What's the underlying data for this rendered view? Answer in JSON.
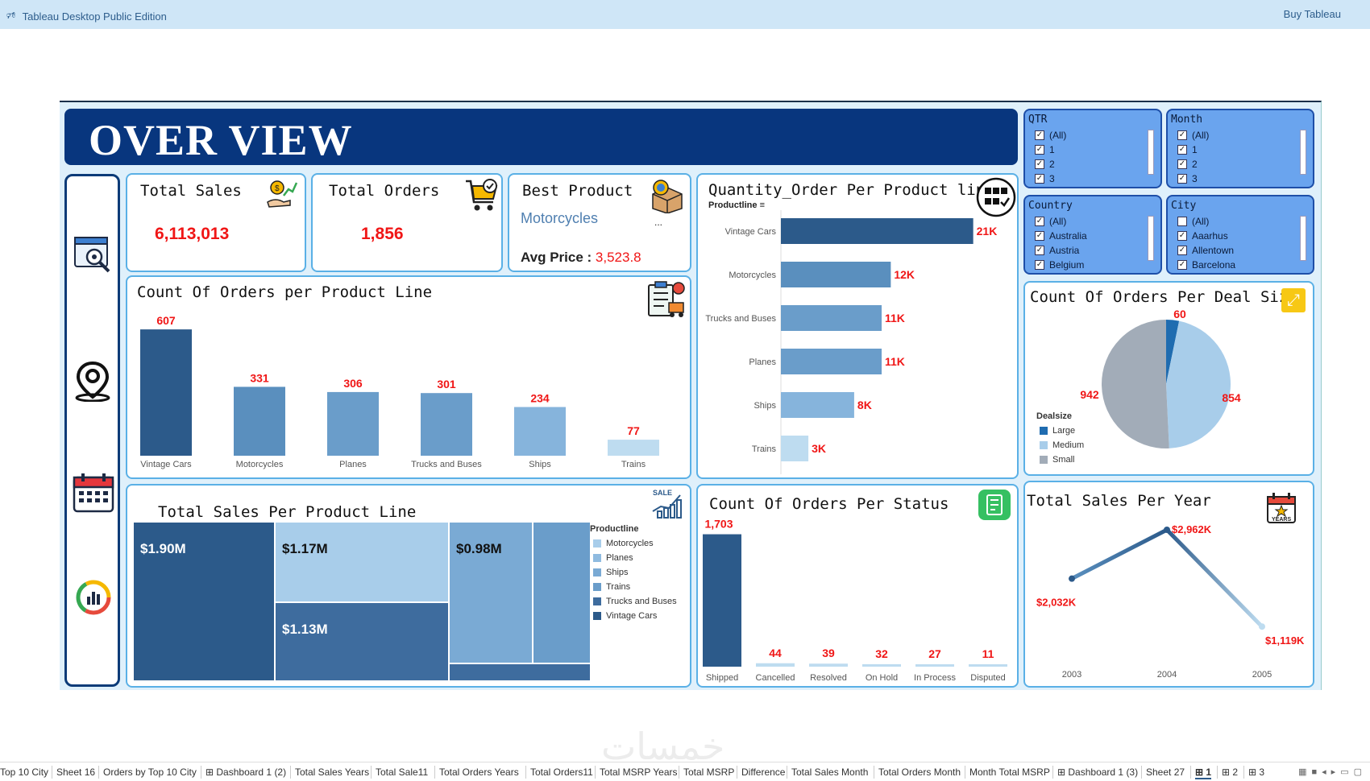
{
  "app": {
    "title": "Tableau Desktop Public Edition",
    "buy": "Buy Tableau"
  },
  "banner": "OVER VIEW",
  "kpis": {
    "total_sales_label": "Total Sales",
    "total_sales_value": "6,113,013",
    "total_orders_label": "Total Orders",
    "total_orders_value": "1,856",
    "best_product_label": "Best Product",
    "best_product_value": "Motorcycles",
    "best_product_more": "...",
    "avg_price_label": "Avg Price :",
    "avg_price_value": "3,523.8"
  },
  "filters": {
    "qtr": {
      "title": "QTR",
      "options": [
        {
          "label": "(All)",
          "checked": true
        },
        {
          "label": "1",
          "checked": true
        },
        {
          "label": "2",
          "checked": true
        },
        {
          "label": "3",
          "checked": true
        }
      ]
    },
    "month": {
      "title": "Month",
      "options": [
        {
          "label": "(All)",
          "checked": true
        },
        {
          "label": "1",
          "checked": true
        },
        {
          "label": "2",
          "checked": true
        },
        {
          "label": "3",
          "checked": true
        }
      ]
    },
    "country": {
      "title": "Country",
      "options": [
        {
          "label": "(All)",
          "checked": true
        },
        {
          "label": "Australia",
          "checked": true
        },
        {
          "label": "Austria",
          "checked": true
        },
        {
          "label": "Belgium",
          "checked": true
        }
      ]
    },
    "city": {
      "title": "City",
      "options": [
        {
          "label": "(All)",
          "checked": false
        },
        {
          "label": "Aaarhus",
          "checked": true
        },
        {
          "label": "Allentown",
          "checked": true
        },
        {
          "label": "Barcelona",
          "checked": true
        }
      ]
    }
  },
  "chart_data": [
    {
      "type": "bar",
      "title": "Count Of Orders per Product Line",
      "categories": [
        "Vintage Cars",
        "Motorcycles",
        "Planes",
        "Trucks and Buses",
        "Ships",
        "Trains"
      ],
      "values": [
        607,
        331,
        306,
        301,
        234,
        77
      ],
      "labels": [
        "607",
        "331",
        "306",
        "301",
        "234",
        "77"
      ],
      "colors": [
        "#2c5a8a",
        "#5a8fbe",
        "#6a9dca",
        "#6a9dca",
        "#86b4dc",
        "#bedcf0"
      ],
      "ylim": [
        0,
        650
      ]
    },
    {
      "type": "bar",
      "orientation": "horizontal",
      "title": "Quantity_Order Per Product line",
      "subtitle": "Productline",
      "categories": [
        "Vintage Cars",
        "Motorcycles",
        "Trucks and Buses",
        "Planes",
        "Ships",
        "Trains"
      ],
      "values": [
        21,
        12,
        11,
        11,
        8,
        3
      ],
      "labels": [
        "21K",
        "12K",
        "11K",
        "11K",
        "8K",
        "3K"
      ],
      "colors": [
        "#2c5a8a",
        "#5a8fbe",
        "#6a9dca",
        "#6a9dca",
        "#86b4dc",
        "#bedcf0"
      ],
      "xlim": [
        0,
        22
      ]
    },
    {
      "type": "pie",
      "title": "Count Of Orders Per Deal Size",
      "legend_title": "Dealsize",
      "slices": [
        {
          "name": "Large",
          "value": 60,
          "color": "#1f6cb0"
        },
        {
          "name": "Medium",
          "value": 854,
          "color": "#a8cdea"
        },
        {
          "name": "Small",
          "value": 942,
          "color": "#a2acb8"
        }
      ]
    },
    {
      "type": "treemap",
      "title": "Total Sales Per Product Line",
      "legend_title": "Productline",
      "legend": [
        {
          "name": "Motorcycles",
          "color": "#a8cdea"
        },
        {
          "name": "Planes",
          "color": "#8fbbe0"
        },
        {
          "name": "Ships",
          "color": "#7aaad4"
        },
        {
          "name": "Trains",
          "color": "#6a9dca"
        },
        {
          "name": "Trucks and Buses",
          "color": "#3e6c9e"
        },
        {
          "name": "Vintage Cars",
          "color": "#2c5a8a"
        }
      ],
      "labels": [
        "$1.90M",
        "$1.17M",
        "$1.13M",
        "$0.98M"
      ]
    },
    {
      "type": "bar",
      "title": "Count Of Orders Per Status",
      "categories": [
        "Shipped",
        "Cancelled",
        "Resolved",
        "On Hold",
        "In Process",
        "Disputed"
      ],
      "values": [
        1703,
        44,
        39,
        32,
        27,
        11
      ],
      "labels": [
        "1,703",
        "44",
        "39",
        "32",
        "27",
        "11"
      ],
      "ylim": [
        0,
        1750
      ]
    },
    {
      "type": "line",
      "title": "Total Sales Per Year",
      "x": [
        "2003",
        "2004",
        "2005"
      ],
      "values": [
        2032,
        2962,
        1119
      ],
      "labels": [
        "$2,032K",
        "$2,962K",
        "$1,119K"
      ],
      "ylim": [
        800,
        3100
      ]
    }
  ],
  "tabs": [
    "Top 10 City",
    "Sheet 16",
    "Orders by Top 10 City",
    "Dashboard 1 (2)",
    "Total Sales Years",
    "Total Sale11",
    "Total Orders Years",
    "Total Orders11",
    "Total MSRP Years",
    "Total MSRP",
    "Difference",
    "Total Sales Month",
    "Total Orders Month",
    "Month Total MSRP",
    "Dashboard 1 (3)",
    "Sheet 27",
    "1",
    "2",
    "3"
  ]
}
